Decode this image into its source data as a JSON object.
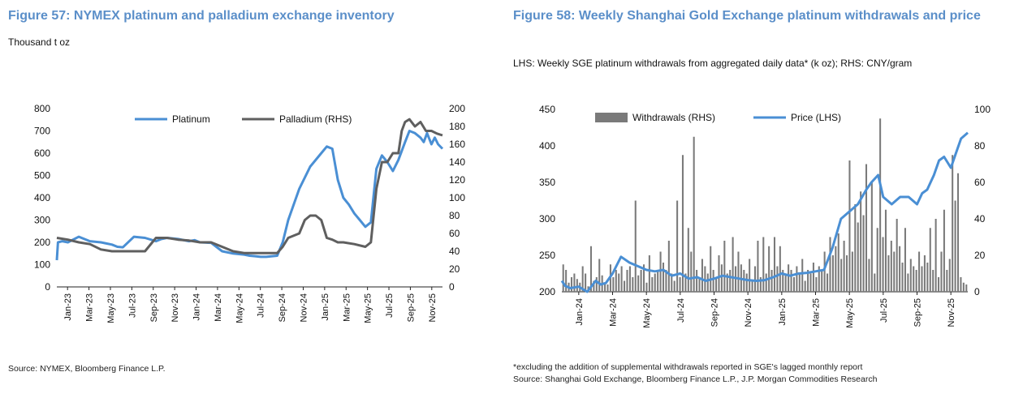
{
  "colors": {
    "title": "#5b8fc9",
    "blue": "#4a8fd4",
    "gray": "#5f5f5f",
    "bar": "#7a7a7a"
  },
  "left": {
    "title": "Figure 57: NYMEX platinum and palladium exchange inventory",
    "subtitle": "Thousand t oz",
    "source": "Source: NYMEX, Bloomberg Finance L.P."
  },
  "right": {
    "title": "Figure 58: Weekly Shanghai Gold Exchange platinum withdrawals and price",
    "subtitle": "LHS: Weekly SGE platinum withdrawals from aggregated daily data* (k oz); RHS: CNY/gram",
    "footnote": "*excluding the addition of supplemental withdrawals reported in SGE's lagged monthly report",
    "source": "Source: Shanghai Gold Exchange, Bloomberg Finance L.P., J.P. Morgan Commodities Research"
  },
  "chart_data": [
    {
      "id": "fig57",
      "type": "line",
      "title": "Figure 57: NYMEX platinum and palladium exchange inventory",
      "ylabel": "Thousand t oz",
      "ylim": [
        0,
        800
      ],
      "yticks": [
        0,
        100,
        200,
        300,
        400,
        500,
        600,
        700,
        800
      ],
      "y2lim": [
        0,
        200
      ],
      "y2ticks": [
        0,
        20,
        40,
        60,
        80,
        100,
        120,
        140,
        160,
        180,
        200
      ],
      "xlim": [
        0,
        35
      ],
      "xticks": [
        "Jan-23",
        "Mar-23",
        "May-23",
        "Jul-23",
        "Sep-23",
        "Nov-23",
        "Jan-24",
        "Mar-24",
        "May-24",
        "Jul-24",
        "Sep-24",
        "Nov-24",
        "Jan-25",
        "Mar-25",
        "May-25",
        "Jul-25",
        "Sep-25",
        "Nov-25"
      ],
      "legend": "top-center",
      "series": [
        {
          "name": "Platinum",
          "axis": "left",
          "x": [
            0,
            0.1,
            0.5,
            1,
            2,
            2.5,
            3,
            4,
            5,
            5.5,
            6,
            7,
            8,
            9,
            9.5,
            10,
            11,
            12,
            12.5,
            13,
            14,
            15,
            16,
            17,
            17.5,
            18,
            18.5,
            19,
            20,
            20.5,
            21,
            22,
            23,
            24,
            24.5,
            25,
            25.5,
            26,
            26.5,
            27,
            27.5,
            28,
            28.5,
            29,
            29.5,
            30,
            30.5,
            31,
            31.3,
            31.6,
            32,
            32.5,
            33,
            33.3,
            33.6,
            34,
            34.3,
            34.6,
            35
          ],
          "y": [
            120,
            200,
            205,
            200,
            225,
            215,
            205,
            200,
            190,
            180,
            178,
            225,
            220,
            205,
            215,
            220,
            215,
            205,
            210,
            200,
            198,
            160,
            150,
            145,
            140,
            138,
            135,
            135,
            140,
            200,
            300,
            440,
            540,
            600,
            630,
            620,
            480,
            400,
            370,
            330,
            300,
            270,
            290,
            530,
            590,
            560,
            520,
            570,
            610,
            650,
            700,
            690,
            670,
            650,
            690,
            640,
            670,
            640,
            620
          ]
        },
        {
          "name": "Palladium (RHS)",
          "axis": "right",
          "x": [
            0,
            1,
            2,
            3,
            4,
            5,
            6,
            7,
            8,
            9,
            10,
            11,
            12,
            13,
            14,
            15,
            16,
            17,
            18,
            19,
            20,
            20.5,
            21,
            22,
            22.5,
            23,
            23.5,
            24,
            24.5,
            25,
            25.5,
            26,
            27,
            28,
            28.5,
            29,
            29.5,
            30,
            30.5,
            31,
            31.3,
            31.6,
            32,
            32.5,
            33,
            33.5,
            34,
            34.5,
            35
          ],
          "y": [
            55,
            53,
            50,
            48,
            42,
            40,
            40,
            40,
            40,
            55,
            55,
            53,
            52,
            50,
            50,
            45,
            40,
            38,
            38,
            38,
            38,
            45,
            55,
            60,
            75,
            80,
            80,
            75,
            55,
            53,
            50,
            50,
            48,
            45,
            50,
            110,
            140,
            140,
            150,
            150,
            175,
            185,
            188,
            180,
            185,
            175,
            175,
            172,
            170
          ]
        }
      ]
    },
    {
      "id": "fig58",
      "type": "bar+line",
      "title": "Figure 58: Weekly Shanghai Gold Exchange platinum withdrawals and price",
      "ylim": [
        200,
        450
      ],
      "yticks": [
        200,
        250,
        300,
        350,
        400,
        450
      ],
      "y2lim": [
        0,
        100
      ],
      "y2ticks": [
        0,
        20,
        40,
        60,
        80,
        100
      ],
      "xlim": [
        0,
        24
      ],
      "xticks": [
        "Jan-24",
        "Mar-24",
        "May-24",
        "Jul-24",
        "Sep-24",
        "Nov-24",
        "Jan-25",
        "Mar-25",
        "May-25",
        "Jul-25",
        "Sep-25",
        "Nov-25"
      ],
      "legend": "top-center",
      "series": [
        {
          "name": "Withdrawals (RHS)",
          "axis": "right",
          "kind": "bar",
          "values": [
            15,
            12,
            5,
            8,
            10,
            7,
            5,
            14,
            10,
            3,
            25,
            6,
            8,
            18,
            9,
            5,
            4,
            15,
            8,
            12,
            10,
            14,
            6,
            12,
            14,
            8,
            50,
            9,
            12,
            15,
            5,
            20,
            8,
            10,
            12,
            22,
            16,
            12,
            28,
            10,
            6,
            50,
            8,
            75,
            10,
            35,
            22,
            85,
            12,
            8,
            18,
            14,
            10,
            25,
            12,
            8,
            20,
            15,
            28,
            10,
            12,
            30,
            14,
            22,
            15,
            12,
            10,
            18,
            6,
            14,
            28,
            8,
            30,
            10,
            25,
            12,
            30,
            14,
            25,
            12,
            10,
            15,
            12,
            8,
            14,
            10,
            18,
            6,
            12,
            10,
            16,
            8,
            14,
            12,
            22,
            10,
            30,
            20,
            25,
            32,
            18,
            28,
            20,
            72,
            22,
            48,
            38,
            55,
            42,
            70,
            18,
            60,
            10,
            35,
            95,
            30,
            45,
            20,
            28,
            22,
            40,
            25,
            16,
            35,
            10,
            18,
            14,
            12,
            22,
            14,
            20,
            16,
            35,
            12,
            40,
            8,
            22,
            45,
            12,
            18,
            75,
            50,
            65,
            8,
            5,
            4
          ],
          "note": "weekly bars, values approximate, in RHS units (k oz)"
        },
        {
          "name": "Price (LHS)",
          "axis": "left",
          "kind": "line",
          "x": [
            0,
            0.2,
            0.5,
            1,
            1.5,
            2,
            2.3,
            2.6,
            3,
            3.5,
            4,
            4.5,
            5,
            5.5,
            6,
            6.5,
            7,
            7.5,
            8,
            8.5,
            9,
            9.5,
            10,
            10.5,
            11,
            11.5,
            12,
            12.5,
            13,
            13.5,
            14,
            14.5,
            15,
            15.5,
            16,
            16.5,
            17,
            17.5,
            18,
            18.3,
            18.7,
            19,
            19.5,
            20,
            20.5,
            21,
            21.3,
            21.6,
            22,
            22.3,
            22.6,
            23,
            23.3,
            23.6,
            24
          ],
          "y": [
            215,
            208,
            205,
            207,
            200,
            215,
            210,
            212,
            225,
            248,
            240,
            235,
            230,
            228,
            230,
            222,
            225,
            218,
            220,
            215,
            218,
            222,
            220,
            218,
            216,
            215,
            216,
            220,
            225,
            222,
            225,
            226,
            228,
            230,
            260,
            300,
            310,
            320,
            340,
            350,
            360,
            330,
            320,
            330,
            330,
            320,
            335,
            340,
            360,
            380,
            385,
            370,
            390,
            410,
            418
          ]
        }
      ]
    }
  ]
}
